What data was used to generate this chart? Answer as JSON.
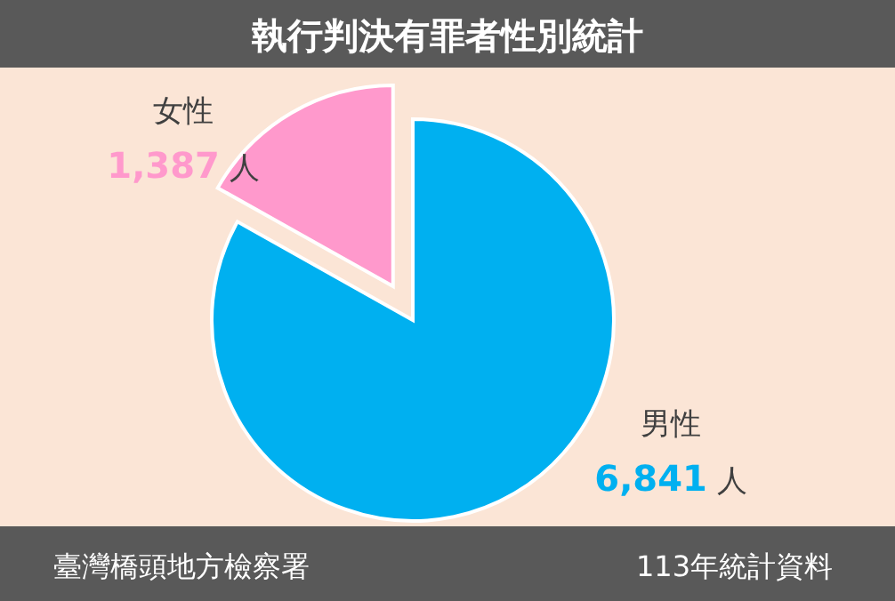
{
  "chart_data": {
    "type": "pie",
    "title": "執行判決有罪者性別統計",
    "categories": [
      "女性",
      "男性"
    ],
    "values": [
      1387,
      6841
    ],
    "colors": [
      "#ff99cc",
      "#00b0f0"
    ],
    "value_labels": [
      "1,387 人",
      "6,841 人"
    ],
    "annotations": [
      "臺灣橋頭地方檢察署",
      "113年統計資料"
    ]
  }
}
